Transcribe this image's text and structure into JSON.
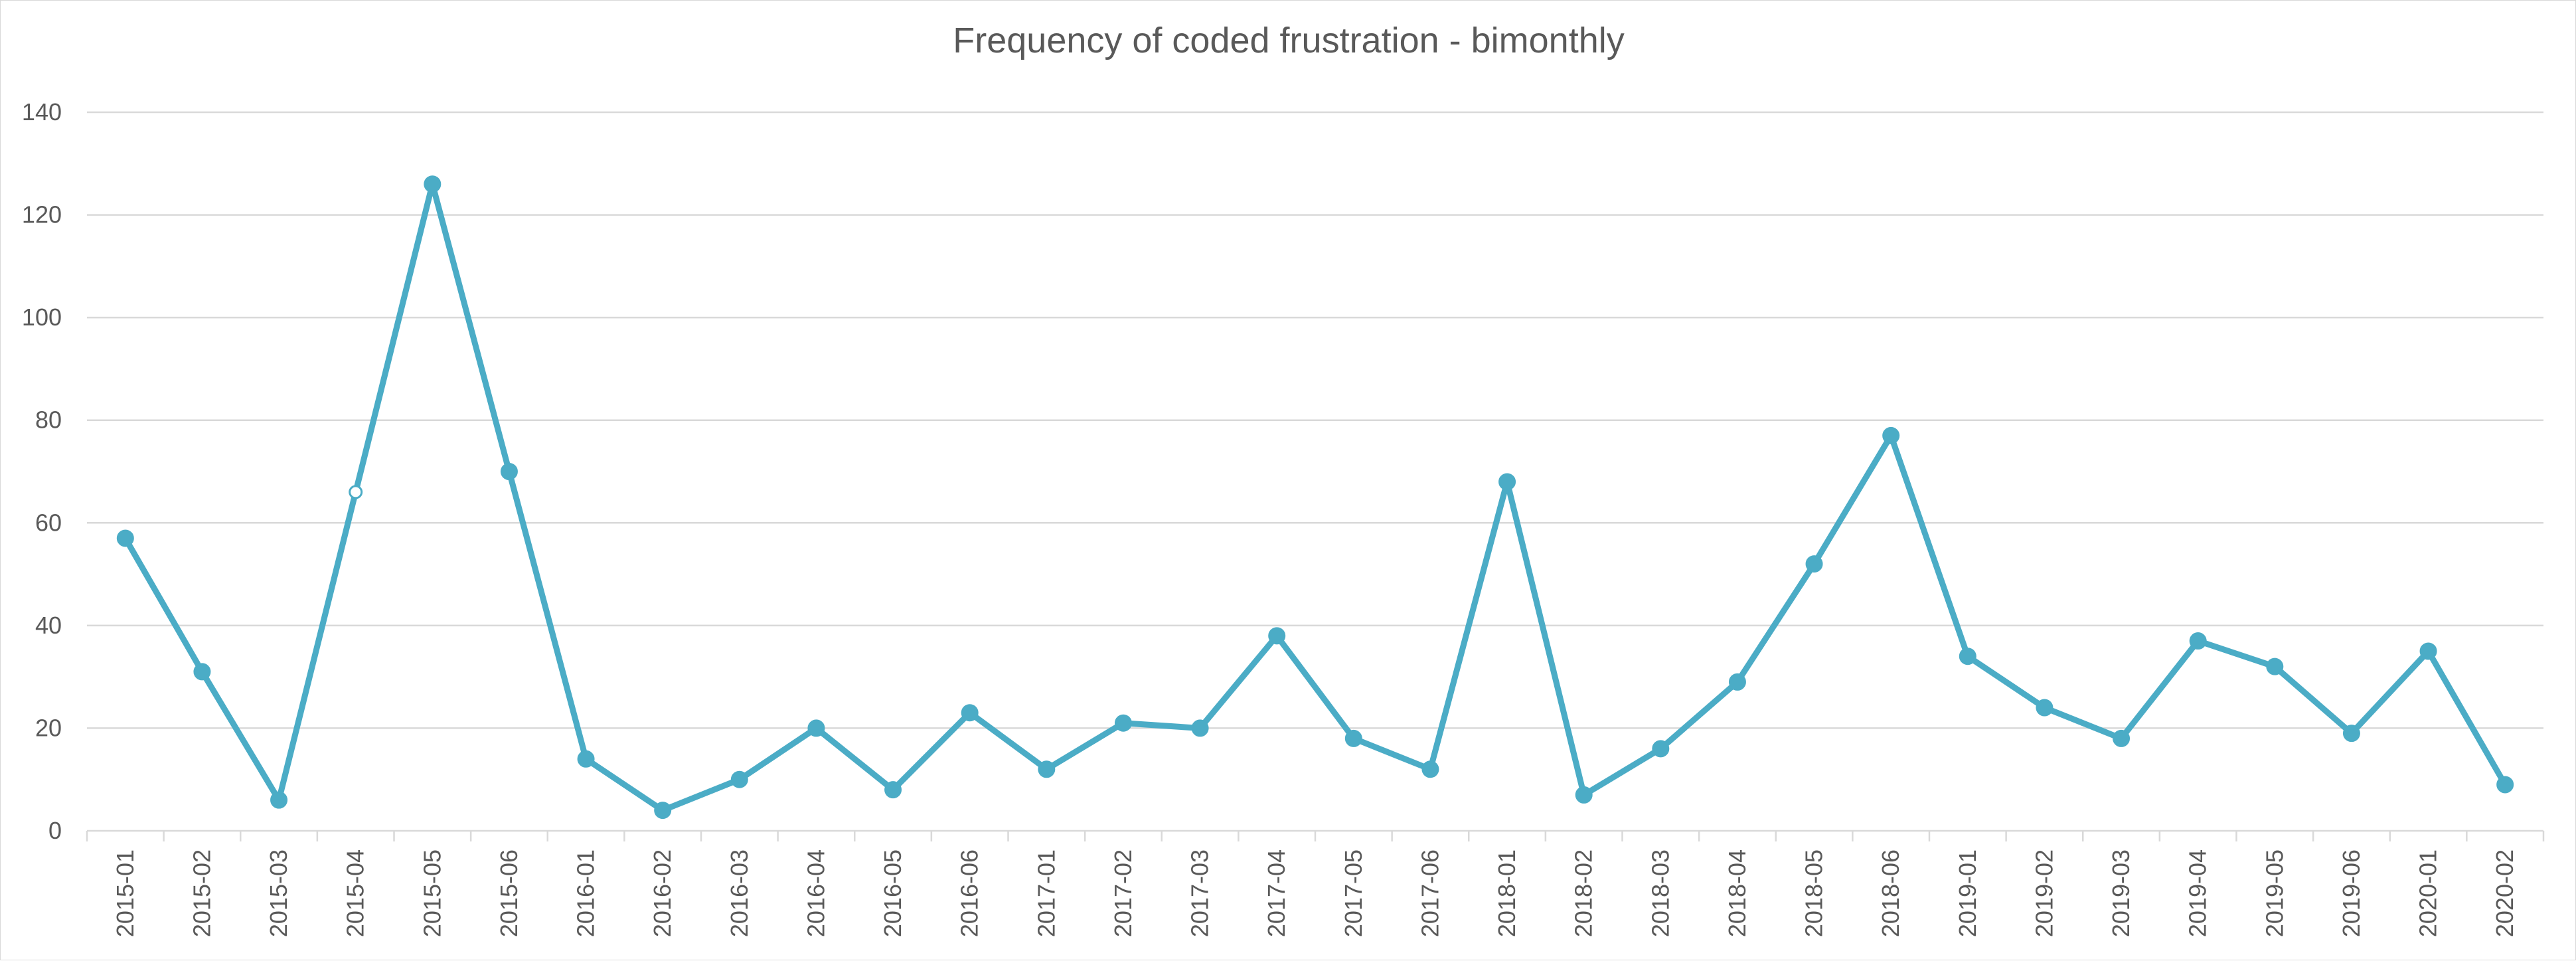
{
  "chart_data": {
    "type": "line",
    "title": "Frequency of coded frustration - bimonthly",
    "xlabel": "",
    "ylabel": "",
    "ylim": [
      0,
      140
    ],
    "y_ticks": [
      0,
      20,
      40,
      60,
      80,
      100,
      120,
      140
    ],
    "grid": true,
    "legend": "none",
    "categories": [
      "2015-01",
      "2015-02",
      "2015-03",
      "2015-04",
      "2015-05",
      "2015-06",
      "2016-01",
      "2016-02",
      "2016-03",
      "2016-04",
      "2016-05",
      "2016-06",
      "2017-01",
      "2017-02",
      "2017-03",
      "2017-04",
      "2017-05",
      "2017-06",
      "2018-01",
      "2018-02",
      "2018-03",
      "2018-04",
      "2018-05",
      "2018-06",
      "2019-01",
      "2019-02",
      "2019-03",
      "2019-04",
      "2019-05",
      "2019-06",
      "2020-01",
      "2020-02"
    ],
    "series": [
      {
        "color": "#4bacc6",
        "values": [
          57,
          31,
          6,
          66,
          126,
          70,
          14,
          4,
          10,
          20,
          8,
          23,
          12,
          21,
          20,
          38,
          18,
          12,
          68,
          7,
          16,
          29,
          52,
          77,
          34,
          24,
          18,
          37,
          32,
          19,
          35,
          9
        ],
        "hollow_point_index": 3
      }
    ]
  }
}
